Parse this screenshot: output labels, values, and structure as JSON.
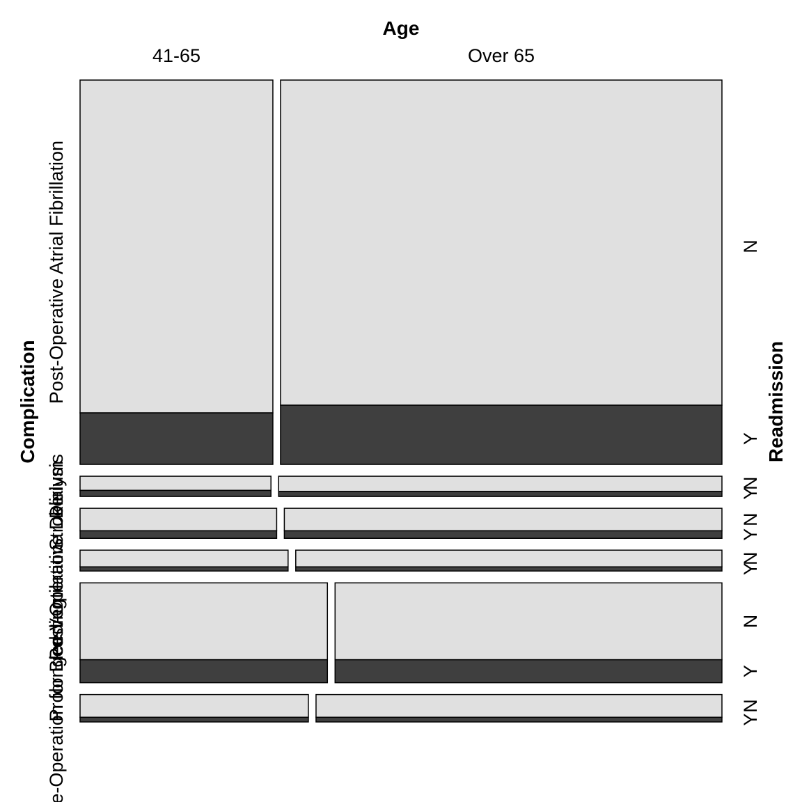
{
  "chart_data": {
    "type": "mosaic",
    "title": "",
    "x_variable": "Age",
    "y_variable": "Complication",
    "z_variable": "Readmission",
    "x_categories": [
      "41-65",
      "Over 65"
    ],
    "z_categories": [
      "N",
      "Y"
    ],
    "groups": [
      {
        "complication": "Post-Operative Atrial Fibrillation",
        "height_share": 0.589,
        "age_split": [
          0.304,
          0.696
        ],
        "readmit_y": [
          0.134,
          0.154
        ]
      },
      {
        "complication": "Dialysis",
        "height_share": 0.031,
        "age_split": [
          0.301,
          0.699
        ],
        "readmit_y": [
          0.3,
          0.25
        ]
      },
      {
        "complication": "Stroke",
        "height_share": 0.046,
        "age_split": [
          0.31,
          0.69
        ],
        "readmit_y": [
          0.25,
          0.25
        ]
      },
      {
        "complication": "Post-Operative Delirium",
        "height_share": 0.032,
        "age_split": [
          0.328,
          0.672
        ],
        "readmit_y": [
          0.2,
          0.2
        ]
      },
      {
        "complication": "Prolonged Ventilation",
        "height_share": 0.153,
        "age_split": [
          0.39,
          0.61
        ],
        "readmit_y": [
          0.23,
          0.23
        ]
      },
      {
        "complication": "Re-Operation for Bleeding",
        "height_share": 0.042,
        "age_split": [
          0.36,
          0.64
        ],
        "readmit_y": [
          0.17,
          0.17
        ]
      }
    ],
    "tile_colors": {
      "N": "#e0e0e0",
      "Y": "#3f3f3f"
    }
  }
}
